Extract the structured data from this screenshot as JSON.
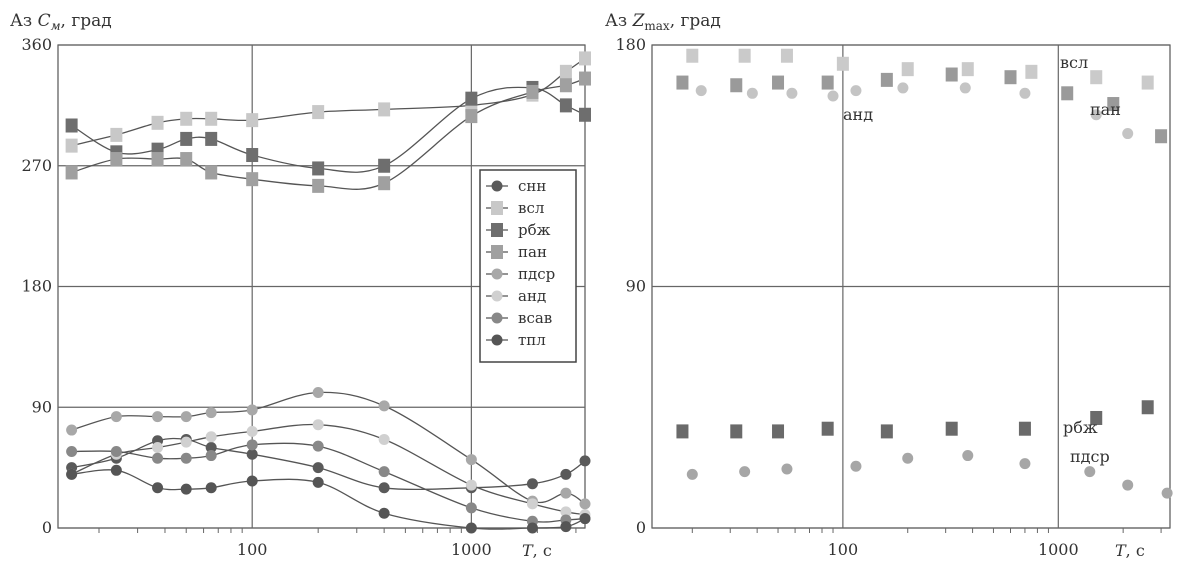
{
  "chart_data": [
    {
      "type": "line",
      "title_main": "Аз ",
      "title_symbol": "C",
      "title_sub": "м",
      "title_rest": ", град",
      "xlabel_symbol": "T",
      "xlabel_unit": ", с",
      "x_scale": "log",
      "xlim": [
        13,
        3300
      ],
      "ylim": [
        0,
        360
      ],
      "x_ticks": [
        100,
        1000
      ],
      "x_tick_labels": [
        "100",
        "1000"
      ],
      "y_ticks": [
        0,
        90,
        180,
        270,
        360
      ],
      "y_tick_labels": [
        "0",
        "90",
        "180",
        "270",
        "360"
      ],
      "grid": true,
      "legend_position": "right",
      "series": [
        {
          "name": "снн",
          "marker": "circle",
          "color": "#5a5a5a",
          "x": [
            15,
            24,
            37,
            50,
            65,
            100,
            200,
            400,
            1000,
            1900,
            2700,
            3300
          ],
          "y": [
            45,
            52,
            65,
            66,
            60,
            55,
            45,
            30,
            30,
            33,
            40,
            50
          ]
        },
        {
          "name": "всл",
          "marker": "square",
          "color": "#c8c8c8",
          "x": [
            15,
            24,
            37,
            50,
            65,
            100,
            200,
            400,
            1000,
            1900,
            2700,
            3300
          ],
          "y": [
            285,
            293,
            302,
            305,
            305,
            304,
            310,
            312,
            315,
            323,
            340,
            350
          ]
        },
        {
          "name": "рбж",
          "marker": "square",
          "color": "#6e6e6e",
          "x": [
            15,
            24,
            37,
            50,
            65,
            100,
            200,
            400,
            1000,
            1900,
            2700,
            3300
          ],
          "y": [
            300,
            280,
            282,
            290,
            290,
            278,
            268,
            270,
            320,
            328,
            315,
            308
          ]
        },
        {
          "name": "пан",
          "marker": "square",
          "color": "#a0a0a0",
          "x": [
            15,
            24,
            37,
            50,
            65,
            100,
            200,
            400,
            1000,
            1900,
            2700,
            3300
          ],
          "y": [
            265,
            275,
            275,
            275,
            265,
            260,
            255,
            257,
            307,
            325,
            330,
            335
          ]
        },
        {
          "name": "пдср",
          "marker": "circle",
          "color": "#a8a8a8",
          "x": [
            15,
            24,
            37,
            50,
            65,
            100,
            200,
            400,
            1000,
            1900,
            2700,
            3300
          ],
          "y": [
            73,
            83,
            83,
            83,
            86,
            88,
            101,
            91,
            51,
            20,
            26,
            18
          ]
        },
        {
          "name": "анд",
          "marker": "circle",
          "color": "#d0d0d0",
          "x": [
            15,
            24,
            37,
            50,
            65,
            100,
            200,
            400,
            1000,
            1900,
            2700,
            3300
          ],
          "y": [
            40,
            55,
            60,
            64,
            68,
            72,
            77,
            66,
            32,
            18,
            12,
            10
          ]
        },
        {
          "name": "всав",
          "marker": "circle",
          "color": "#888888",
          "x": [
            15,
            24,
            37,
            50,
            65,
            100,
            200,
            400,
            1000,
            1900,
            2700,
            3300
          ],
          "y": [
            57,
            57,
            52,
            52,
            54,
            62,
            61,
            42,
            15,
            5,
            6,
            7
          ]
        },
        {
          "name": "тпл",
          "marker": "circle",
          "color": "#555555",
          "x": [
            15,
            24,
            37,
            50,
            65,
            100,
            200,
            400,
            1000,
            1900,
            2700,
            3300
          ],
          "y": [
            40,
            43,
            30,
            29,
            30,
            35,
            34,
            11,
            0,
            0,
            1,
            7
          ]
        }
      ]
    },
    {
      "type": "scatter",
      "title_main": "Аз ",
      "title_symbol": "Z",
      "title_sub": "max",
      "title_rest": ", град",
      "xlabel_symbol": "T",
      "xlabel_unit": ", с",
      "x_scale": "log",
      "xlim": [
        13,
        3300
      ],
      "ylim": [
        0,
        180
      ],
      "x_ticks": [
        100,
        1000
      ],
      "x_tick_labels": [
        "100",
        "1000"
      ],
      "y_ticks": [
        0,
        90,
        180
      ],
      "y_tick_labels": [
        "0",
        "90",
        "180"
      ],
      "grid": true,
      "annotations": [
        "всл",
        "пан",
        "анд",
        "рбж",
        "пдср"
      ],
      "series": [
        {
          "name": "всл",
          "marker": "square",
          "color": "#cacaca",
          "x": [
            20,
            35,
            55,
            100,
            200,
            380,
            750,
            1500,
            2600
          ],
          "y": [
            176,
            176,
            176,
            173,
            171,
            171,
            170,
            168,
            166
          ]
        },
        {
          "name": "пан",
          "marker": "square",
          "color": "#9a9a9a",
          "x": [
            18,
            32,
            50,
            85,
            160,
            320,
            600,
            1100,
            1800,
            3000
          ],
          "y": [
            166,
            165,
            166,
            166,
            167,
            169,
            168,
            162,
            158,
            146
          ]
        },
        {
          "name": "анд",
          "marker": "circle",
          "color": "#c4c4c4",
          "x": [
            22,
            38,
            58,
            90,
            115,
            190,
            370,
            700,
            1500,
            2100
          ],
          "y": [
            163,
            162,
            162,
            161,
            163,
            164,
            164,
            162,
            154,
            147
          ]
        },
        {
          "name": "рбж",
          "marker": "square",
          "color": "#6a6a6a",
          "x": [
            18,
            32,
            50,
            85,
            160,
            320,
            700,
            1500,
            2600
          ],
          "y": [
            36,
            36,
            36,
            37,
            36,
            37,
            37,
            41,
            45
          ]
        },
        {
          "name": "пдср",
          "marker": "circle",
          "color": "#a6a6a6",
          "x": [
            20,
            35,
            55,
            115,
            200,
            380,
            700,
            1400,
            2100,
            3200
          ],
          "y": [
            20,
            21,
            22,
            23,
            26,
            27,
            24,
            21,
            16,
            13
          ]
        }
      ]
    }
  ]
}
